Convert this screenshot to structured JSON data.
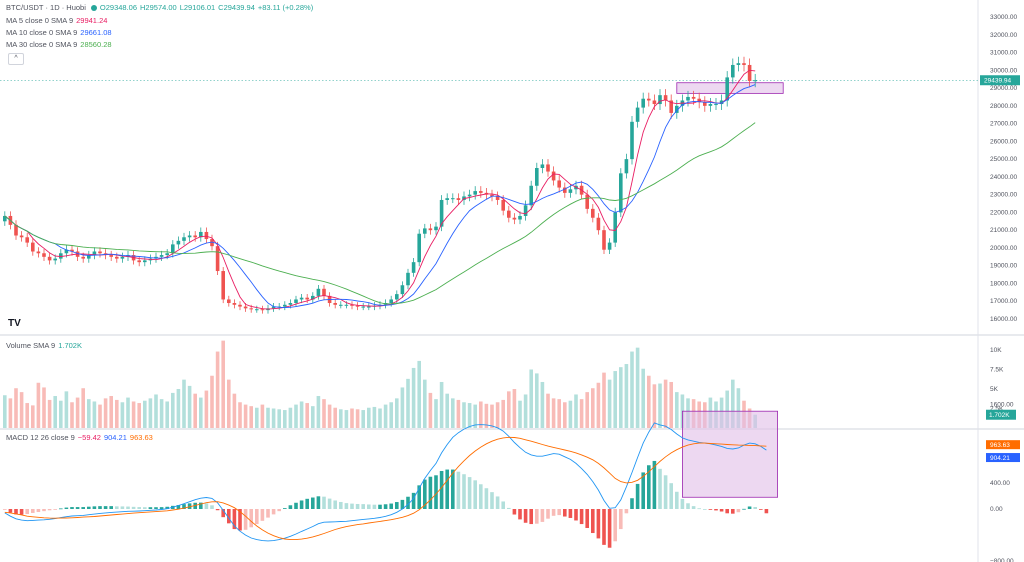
{
  "header": {
    "symbol": "BTC/USDT · 1D · Huobi",
    "ohlc": {
      "o": "O29348.06",
      "h": "H29574.00",
      "l": "L29106.01",
      "c": "C29439.94",
      "chg": "+83.11 (+0.28%)"
    },
    "ma5": {
      "label": "MA 5 close 0 SMA 9",
      "value": "29941.24"
    },
    "ma10": {
      "label": "MA 10 close 0 SMA 9",
      "value": "29661.08"
    },
    "ma30": {
      "label": "MA 30 close 0 SMA 9",
      "value": "28560.28"
    },
    "collapse_glyph": "^",
    "volume": {
      "label": "Volume SMA 9",
      "value": "1.702K"
    },
    "macd": {
      "label": "MACD 12 26 close 9",
      "hist": "−59.42",
      "macd": "904.21",
      "signal": "963.63"
    },
    "logo": "TV"
  },
  "colors": {
    "up": "#26a69a",
    "down": "#ef5350",
    "up_vol": "#b2dfdb",
    "down_vol": "#f8bbb7",
    "ma5": "#e91e63",
    "ma10": "#2962ff",
    "ma30": "#4caf50",
    "macd": "#2196f3",
    "signal": "#ff6d00",
    "box_fill": "#e1bee7",
    "box_stroke": "#9c27b0"
  },
  "price_axis": {
    "ticks": [
      "33000.00",
      "32000.00",
      "31000.00",
      "30000.00",
      "29000.00",
      "28000.00",
      "27000.00",
      "26000.00",
      "25000.00",
      "24000.00",
      "23000.00",
      "22000.00",
      "21000.00",
      "20000.00",
      "19000.00",
      "18000.00",
      "17000.00",
      "16000.00"
    ],
    "last_price": "29439.94"
  },
  "volume_axis": {
    "ticks": [
      "10K",
      "7.5K",
      "5K",
      "2.5K"
    ],
    "last_value": "1.702K"
  },
  "macd_axis": {
    "ticks": [
      "1600.00",
      "800.00",
      "400.00",
      "0.00",
      "−800.00"
    ],
    "signal_value": "963.63",
    "macd_value": "904.21"
  },
  "chart_data": {
    "type": "candlestick",
    "title": "BTC/USDT · 1D · Huobi",
    "ylim": [
      16000,
      33500
    ],
    "closes": [
      21800,
      21300,
      20700,
      20600,
      20300,
      19800,
      19700,
      19500,
      19300,
      19400,
      19700,
      19900,
      19800,
      19500,
      19400,
      19600,
      19800,
      19700,
      19600,
      19500,
      19400,
      19500,
      19600,
      19300,
      19200,
      19300,
      19400,
      19500,
      19600,
      19700,
      20200,
      20400,
      20600,
      20700,
      20600,
      20900,
      20500,
      20100,
      18700,
      17100,
      16900,
      16800,
      16700,
      16600,
      16550,
      16550,
      16500,
      16600,
      16700,
      16700,
      16800,
      16900,
      17100,
      17200,
      17100,
      17300,
      17700,
      17300,
      16900,
      16800,
      16800,
      16800,
      16750,
      16700,
      16700,
      16700,
      16750,
      16800,
      16900,
      17100,
      17400,
      17900,
      18600,
      19200,
      20800,
      21100,
      21000,
      21200,
      22700,
      22800,
      22800,
      22700,
      22900,
      23000,
      23200,
      23100,
      23000,
      22900,
      22700,
      22100,
      21700,
      21600,
      21800,
      22400,
      23500,
      24500,
      24700,
      24300,
      23800,
      23400,
      23100,
      23300,
      23500,
      23000,
      22200,
      21700,
      21000,
      19900,
      20300,
      22000,
      24200,
      25000,
      27100,
      27900,
      28400,
      28300,
      28100,
      28600,
      28300,
      27600,
      28000,
      28300,
      28500,
      28400,
      28200,
      28000,
      28100,
      28100,
      28300,
      29600,
      30300,
      30400,
      30300,
      29400,
      29440
    ],
    "volume": [
      4200,
      3800,
      5100,
      4600,
      3200,
      2900,
      5800,
      5200,
      3600,
      4100,
      3500,
      4700,
      3300,
      3900,
      5100,
      3700,
      3400,
      3000,
      3800,
      4100,
      3600,
      3300,
      3900,
      3400,
      3200,
      3500,
      3800,
      4300,
      3700,
      3400,
      4500,
      5000,
      6200,
      5400,
      4400,
      3900,
      4800,
      6700,
      9800,
      11200,
      6200,
      4400,
      3300,
      3000,
      2800,
      2600,
      3000,
      2600,
      2500,
      2400,
      2300,
      2600,
      3000,
      3400,
      3200,
      2800,
      4100,
      3700,
      3000,
      2600,
      2400,
      2300,
      2500,
      2400,
      2300,
      2600,
      2700,
      2500,
      3000,
      3300,
      3800,
      5200,
      6300,
      7700,
      8600,
      6200,
      4500,
      3700,
      5900,
      4400,
      3800,
      3600,
      3300,
      3200,
      3000,
      3400,
      3100,
      3000,
      3300,
      3600,
      4700,
      5000,
      3500,
      4300,
      7500,
      7000,
      5900,
      4400,
      3800,
      3700,
      3300,
      3500,
      4300,
      3700,
      4600,
      5100,
      5800,
      7100,
      6200,
      7300,
      7800,
      8200,
      9800,
      10300,
      7600,
      6700,
      5600,
      5700,
      6200,
      5900,
      4600,
      4300,
      3800,
      3700,
      3400,
      3300,
      3900,
      3400,
      3900,
      4800,
      6200,
      5100,
      3500,
      2500,
      1702
    ],
    "macd": [
      -60,
      -110,
      -150,
      -170,
      -180,
      -175,
      -170,
      -165,
      -158,
      -148,
      -132,
      -118,
      -108,
      -103,
      -98,
      -88,
      -78,
      -68,
      -60,
      -52,
      -48,
      -42,
      -36,
      -33,
      -30,
      -26,
      -20,
      -15,
      -8,
      4,
      28,
      52,
      82,
      112,
      142,
      166,
      176,
      162,
      95,
      -20,
      -140,
      -260,
      -340,
      -400,
      -445,
      -470,
      -485,
      -490,
      -485,
      -470,
      -448,
      -418,
      -383,
      -343,
      -306,
      -268,
      -226,
      -203,
      -200,
      -196,
      -192,
      -188,
      -180,
      -170,
      -160,
      -152,
      -142,
      -130,
      -112,
      -88,
      -50,
      0,
      70,
      160,
      320,
      470,
      590,
      700,
      860,
      990,
      1100,
      1170,
      1225,
      1265,
      1290,
      1295,
      1290,
      1275,
      1245,
      1195,
      1115,
      1020,
      940,
      870,
      830,
      810,
      810,
      830,
      850,
      840,
      800,
      760,
      700,
      620,
      530,
      420,
      290,
      130,
      10,
      20,
      140,
      340,
      560,
      790,
      1010,
      1180,
      1320,
      1290,
      1270,
      1220,
      1150,
      1090,
      1060,
      1040,
      1020,
      1010,
      1000,
      980,
      960,
      930,
      920,
      935,
      980,
      1010,
      1000,
      960,
      904
    ],
    "signal": [
      -50,
      -60,
      -75,
      -90,
      -110,
      -120,
      -128,
      -135,
      -140,
      -141,
      -140,
      -138,
      -135,
      -130,
      -125,
      -120,
      -115,
      -108,
      -100,
      -92,
      -85,
      -78,
      -70,
      -63,
      -57,
      -51,
      -45,
      -40,
      -34,
      -27,
      -16,
      -3,
      14,
      33,
      55,
      77,
      97,
      111,
      112,
      94,
      60,
      20,
      -40,
      -110,
      -190,
      -260,
      -320,
      -370,
      -410,
      -440,
      -460,
      -470,
      -470,
      -462,
      -448,
      -428,
      -403,
      -375,
      -345,
      -315,
      -290,
      -270,
      -255,
      -240,
      -228,
      -215,
      -202,
      -190,
      -178,
      -164,
      -147,
      -127,
      -101,
      -65,
      -10,
      60,
      140,
      230,
      330,
      440,
      550,
      650,
      740,
      820,
      890,
      950,
      1000,
      1040,
      1070,
      1090,
      1100,
      1097,
      1085,
      1062,
      1040,
      1015,
      990,
      965,
      945,
      925,
      905,
      885,
      860,
      830,
      795,
      755,
      700,
      630,
      550,
      470,
      420,
      400,
      410,
      440,
      500,
      570,
      650,
      730,
      800,
      860,
      910,
      950,
      980,
      1000,
      1010,
      1010,
      1005,
      1000,
      995,
      990,
      985,
      980,
      978,
      975,
      972,
      968,
      963.63
    ],
    "annotations": [
      {
        "type": "rectangle",
        "pane": "price",
        "from_index": 120,
        "to_index": 139,
        "y_range": [
          28700,
          29300
        ]
      },
      {
        "type": "rectangle",
        "pane": "macd",
        "from_index": 121,
        "to_index": 138,
        "y_range": [
          180,
          1500
        ]
      }
    ]
  }
}
